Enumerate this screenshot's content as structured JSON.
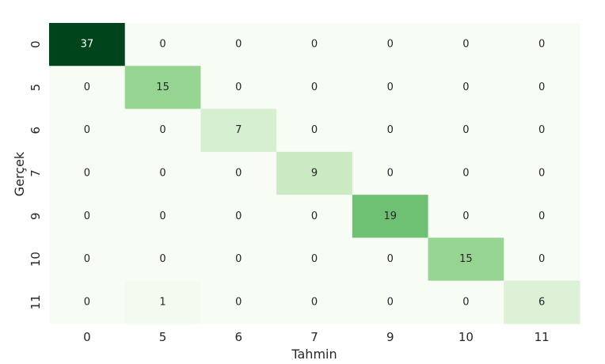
{
  "chart_data": {
    "type": "heatmap",
    "title": "",
    "xlabel": "Tahmin",
    "ylabel": "Gerçek",
    "x_categories": [
      "0",
      "5",
      "6",
      "7",
      "9",
      "10",
      "11"
    ],
    "y_categories": [
      "0",
      "5",
      "6",
      "7",
      "9",
      "10",
      "11"
    ],
    "values": [
      [
        37,
        0,
        0,
        0,
        0,
        0,
        0
      ],
      [
        0,
        15,
        0,
        0,
        0,
        0,
        0
      ],
      [
        0,
        0,
        7,
        0,
        0,
        0,
        0
      ],
      [
        0,
        0,
        0,
        9,
        0,
        0,
        0
      ],
      [
        0,
        0,
        0,
        0,
        19,
        0,
        0
      ],
      [
        0,
        0,
        0,
        0,
        0,
        15,
        0
      ],
      [
        0,
        1,
        0,
        0,
        0,
        0,
        6
      ]
    ],
    "colormap": "Greens",
    "value_range": [
      0,
      37
    ],
    "colorbar": false,
    "grid": false
  }
}
